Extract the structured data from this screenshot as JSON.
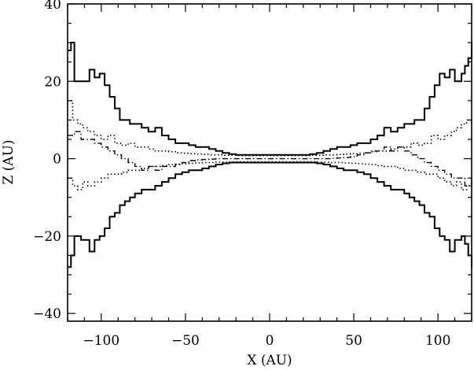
{
  "chart_data": {
    "type": "line",
    "title": "",
    "xlabel": "X (AU)",
    "ylabel": "Z (AU)",
    "xlim": [
      -120,
      120
    ],
    "ylim": [
      -42,
      40
    ],
    "xticks": [
      -100,
      -50,
      0,
      50,
      100
    ],
    "xtick_labels": [
      "−100",
      "−50",
      "0",
      "50",
      "100"
    ],
    "yticks": [
      -40,
      -20,
      0,
      20,
      40
    ],
    "ytick_labels": [
      "−40",
      "−20",
      "0",
      "20",
      "40"
    ],
    "grid": false,
    "legend": "none",
    "series": [
      {
        "style": "solid",
        "color": "#000000",
        "x": [
          -120,
          -118,
          -116,
          -114,
          -112,
          -110,
          -107,
          -104,
          -101,
          -98,
          -95,
          -92,
          -89,
          -86,
          -83,
          -80,
          -76,
          -72,
          -68,
          -64,
          -60,
          -56,
          -52,
          -48,
          -44,
          -40,
          -36,
          -32,
          -28,
          -24,
          -20,
          -16,
          -12,
          -8,
          -4,
          0,
          4,
          8,
          12,
          16,
          20,
          24,
          28,
          32,
          36,
          40,
          44,
          48,
          52,
          56,
          60,
          64,
          68,
          72,
          76,
          80,
          83,
          86,
          89,
          92,
          95,
          98,
          101,
          104,
          107,
          110,
          112,
          114,
          116,
          118,
          120
        ],
        "y": [
          28,
          30,
          20,
          20,
          20,
          20,
          23,
          21,
          22,
          19,
          16,
          13,
          10,
          10,
          9,
          9,
          8,
          7,
          8,
          6,
          5,
          4,
          4,
          3.5,
          3,
          3,
          2.5,
          2,
          1.5,
          1.2,
          1,
          1,
          1,
          1,
          1,
          1,
          1,
          1,
          1,
          1,
          1,
          1.2,
          1.5,
          2,
          2.5,
          3,
          3,
          3.5,
          4,
          4,
          5,
          6,
          8,
          7,
          8,
          9,
          9,
          10,
          10,
          13,
          16,
          19,
          22,
          21,
          23,
          20,
          20,
          22,
          24,
          26,
          30
        ]
      },
      {
        "style": "solid",
        "color": "#000000",
        "x": [
          -120,
          -118,
          -116,
          -114,
          -112,
          -110,
          -107,
          -104,
          -101,
          -98,
          -95,
          -92,
          -89,
          -86,
          -83,
          -80,
          -76,
          -72,
          -68,
          -64,
          -60,
          -56,
          -52,
          -48,
          -44,
          -40,
          -36,
          -32,
          -28,
          -24,
          -20,
          -16,
          -12,
          -8,
          -4,
          0,
          4,
          8,
          12,
          16,
          20,
          24,
          28,
          32,
          36,
          40,
          44,
          48,
          52,
          56,
          60,
          64,
          68,
          72,
          76,
          80,
          83,
          86,
          89,
          92,
          95,
          98,
          101,
          104,
          107,
          110,
          112,
          114,
          116,
          118,
          120
        ],
        "y": [
          -28,
          -25,
          -20,
          -20,
          -21,
          -21,
          -24,
          -21,
          -20,
          -18,
          -15,
          -14,
          -12,
          -11,
          -10,
          -9,
          -8,
          -8,
          -7,
          -6,
          -5,
          -4,
          -3.5,
          -3,
          -3,
          -2.5,
          -2,
          -1.5,
          -1.2,
          -1,
          -1,
          -1,
          -1,
          -1,
          -1,
          -1,
          -1,
          -1,
          -1,
          -1,
          -1,
          -1,
          -1.2,
          -1.5,
          -2,
          -2.5,
          -3,
          -3,
          -3.5,
          -4,
          -5,
          -6,
          -7,
          -8,
          -8,
          -9,
          -10,
          -11,
          -12,
          -14,
          -15,
          -18,
          -20,
          -21,
          -24,
          -21,
          -21,
          -20,
          -22,
          -25,
          -28
        ]
      },
      {
        "style": "dotted",
        "color": "#000000",
        "x": [
          -120,
          -117,
          -114,
          -111,
          -108,
          -104,
          -100,
          -96,
          -92,
          -88,
          -84,
          -80,
          -76,
          -72,
          -68,
          -64,
          -60,
          -56,
          -52,
          -48,
          -44,
          -40,
          -36,
          -32,
          -28,
          -24,
          -20,
          -16,
          -12,
          -8,
          -4,
          0,
          4,
          8,
          12,
          16,
          20,
          24,
          28,
          32,
          36,
          40,
          44,
          48,
          52,
          56,
          60,
          64,
          68,
          72,
          76,
          80,
          84,
          88,
          92,
          96,
          100,
          104,
          108,
          111,
          114,
          117,
          120
        ],
        "y": [
          15,
          10,
          9,
          8,
          7,
          6,
          5,
          6,
          4,
          3.5,
          4,
          3,
          3,
          2.5,
          2,
          2,
          1.8,
          1.5,
          1.4,
          1.3,
          1.2,
          1.1,
          1,
          1,
          0.9,
          0.9,
          0.8,
          0.8,
          0.8,
          0.8,
          0.8,
          0.8,
          0.8,
          0.8,
          0.8,
          0.8,
          0.8,
          0.9,
          0.9,
          1,
          1,
          1.1,
          1.2,
          1.3,
          1.4,
          1.5,
          1.8,
          2,
          2,
          2.5,
          3,
          3,
          4,
          3.5,
          4,
          6,
          5,
          6,
          7,
          8,
          9,
          10,
          9
        ]
      },
      {
        "style": "dotted",
        "color": "#000000",
        "x": [
          -120,
          -117,
          -114,
          -111,
          -108,
          -104,
          -100,
          -96,
          -92,
          -88,
          -84,
          -80,
          -76,
          -72,
          -68,
          -64,
          -60,
          -56,
          -52,
          -48,
          -44,
          -40,
          -36,
          -32,
          -28,
          -24,
          -20,
          -16,
          -12,
          -8,
          -4,
          0,
          4,
          8,
          12,
          16,
          20,
          24,
          28,
          32,
          36,
          40,
          44,
          48,
          52,
          56,
          60,
          64,
          68,
          72,
          76,
          80,
          84,
          88,
          92,
          96,
          100,
          104,
          108,
          111,
          114,
          117,
          120
        ],
        "y": [
          -5,
          -7,
          -8,
          -6,
          -7,
          -6,
          -5,
          -4,
          -4,
          -3.5,
          -3,
          -3,
          -2.5,
          -2,
          -2,
          -1.8,
          -1.5,
          -1.4,
          -1.3,
          -1.2,
          -1.1,
          -1,
          -1,
          -0.9,
          -0.9,
          -0.8,
          -0.8,
          -0.8,
          -0.8,
          -0.8,
          -0.8,
          -0.8,
          -0.8,
          -0.8,
          -0.8,
          -0.8,
          -0.8,
          -0.8,
          -0.9,
          -0.9,
          -1,
          -1,
          -1.1,
          -1.2,
          -1.3,
          -1.4,
          -1.5,
          -1.8,
          -2,
          -2,
          -2.5,
          -3,
          -3,
          -3.5,
          -4,
          -4,
          -5,
          -6,
          -7,
          -6,
          -8,
          -7,
          -5
        ]
      },
      {
        "style": "dashdot",
        "color": "#000000",
        "x": [
          -120,
          -116,
          -112,
          -108,
          -104,
          -100,
          -96,
          -92,
          -88,
          -84,
          -80,
          -76,
          -72,
          -68,
          -64,
          -60,
          -56,
          -52,
          -48,
          -44,
          -40,
          -36,
          -32,
          -28,
          -24,
          -20,
          -16,
          -12,
          -8,
          -4,
          0,
          4,
          8,
          12,
          16,
          20,
          24,
          28,
          32,
          36,
          40,
          44,
          48,
          52,
          56,
          60,
          64,
          68,
          72,
          76,
          80,
          84,
          88,
          92,
          96,
          100,
          104,
          108,
          112,
          116,
          120
        ],
        "y": [
          6,
          7,
          5,
          5,
          4,
          3,
          2,
          1,
          0,
          -1,
          -2,
          -3,
          -2,
          -3,
          -2,
          -2,
          -1.5,
          -1,
          -0.5,
          -0.3,
          -0.2,
          -0.1,
          0,
          0,
          0,
          0,
          0,
          0,
          0,
          0,
          0,
          0,
          0,
          0,
          0,
          0,
          0,
          0,
          0,
          0.1,
          0.2,
          0.3,
          0.5,
          1,
          1.5,
          2,
          2,
          3,
          2,
          3,
          2,
          1,
          0,
          -1,
          -2,
          -3,
          -4,
          -5,
          -5,
          -7,
          -6
        ]
      }
    ]
  }
}
